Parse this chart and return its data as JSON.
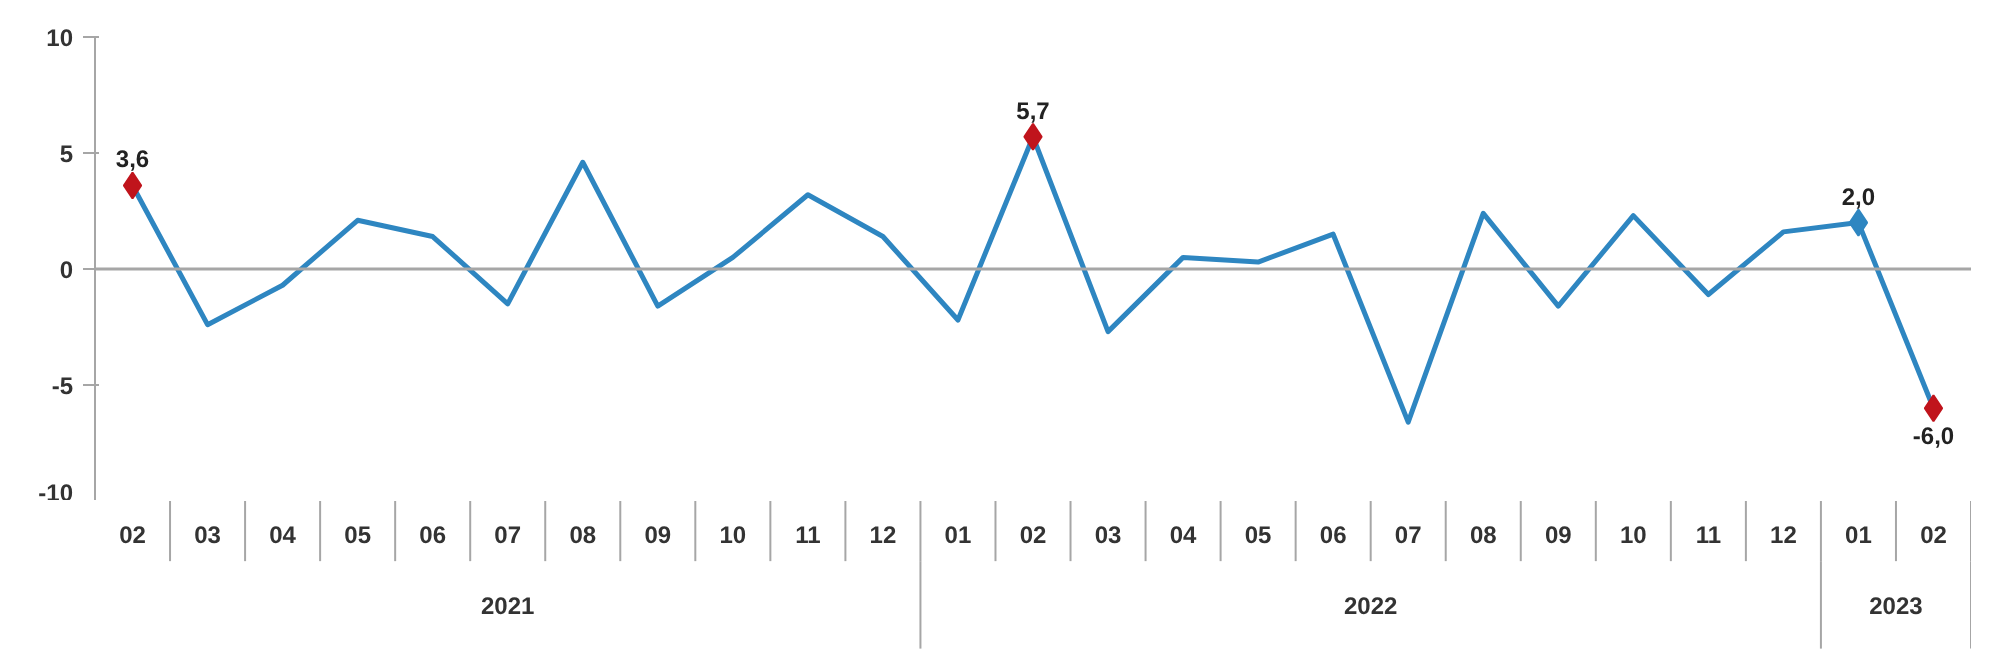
{
  "chart_data": {
    "type": "line",
    "categories": [
      "02",
      "03",
      "04",
      "05",
      "06",
      "07",
      "08",
      "09",
      "10",
      "11",
      "12",
      "01",
      "02",
      "03",
      "04",
      "05",
      "06",
      "07",
      "08",
      "09",
      "10",
      "11",
      "12",
      "01",
      "02"
    ],
    "series": [
      {
        "color": "#2e86c1",
        "values": [
          3.6,
          -2.4,
          -0.7,
          2.1,
          1.4,
          -1.5,
          4.6,
          -1.6,
          0.5,
          3.2,
          1.4,
          -2.2,
          5.7,
          -2.7,
          0.5,
          0.3,
          1.5,
          -6.6,
          2.4,
          -1.6,
          2.3,
          -1.1,
          1.6,
          2.0,
          -6.0
        ]
      },
      {
        "type": "scatter",
        "marker": "diamond",
        "colors": [
          "#c0141c",
          null,
          null,
          null,
          null,
          null,
          null,
          null,
          null,
          null,
          null,
          null,
          "#c0141c",
          null,
          null,
          null,
          null,
          null,
          null,
          null,
          null,
          null,
          null,
          "#2e86c1",
          "#c0141c"
        ],
        "values": [
          3.6,
          null,
          null,
          null,
          null,
          null,
          null,
          null,
          null,
          null,
          null,
          null,
          5.7,
          null,
          null,
          null,
          null,
          null,
          null,
          null,
          null,
          null,
          null,
          2.0,
          -6.0
        ],
        "value_labels": [
          "3,6",
          null,
          null,
          null,
          null,
          null,
          null,
          null,
          null,
          null,
          null,
          null,
          "5,7",
          null,
          null,
          null,
          null,
          null,
          null,
          null,
          null,
          null,
          null,
          "2,0",
          "-6,0"
        ]
      }
    ],
    "ylim": [
      -10,
      10
    ],
    "yticks": [
      -10,
      -5,
      0,
      5,
      10
    ],
    "annotations": [
      "2021",
      "2022",
      "2023"
    ],
    "ref_lines": [
      {
        "axis": "y",
        "value": 0,
        "color": "#a6a6a6"
      }
    ]
  }
}
